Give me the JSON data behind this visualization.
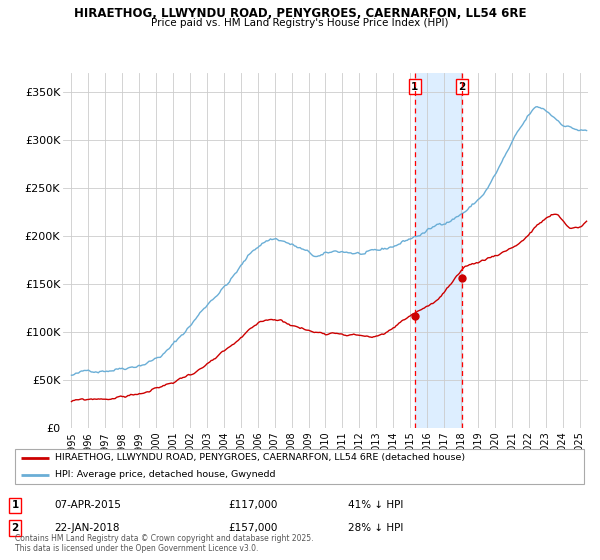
{
  "title1": "HIRAETHOG, LLWYNDU ROAD, PENYGROES, CAERNARFON, LL54 6RE",
  "title2": "Price paid vs. HM Land Registry's House Price Index (HPI)",
  "ylabel_ticks": [
    "£0",
    "£50K",
    "£100K",
    "£150K",
    "£200K",
    "£250K",
    "£300K",
    "£350K"
  ],
  "ytick_values": [
    0,
    50000,
    100000,
    150000,
    200000,
    250000,
    300000,
    350000
  ],
  "ylim": [
    0,
    370000
  ],
  "xlim_start": 1994.5,
  "xlim_end": 2025.5,
  "hpi_color": "#6aaed6",
  "price_color": "#cc0000",
  "dashed_line_color": "#ff0000",
  "shade_color": "#ddeeff",
  "marker1_date": 2015.27,
  "marker2_date": 2018.05,
  "marker1_price": 117000,
  "marker2_price": 157000,
  "legend_text1": "HIRAETHOG, LLWYNDU ROAD, PENYGROES, CAERNARFON, LL54 6RE (detached house)",
  "legend_text2": "HPI: Average price, detached house, Gwynedd",
  "note1_num": "1",
  "note1_date": "07-APR-2015",
  "note1_price": "£117,000",
  "note1_hpi": "41% ↓ HPI",
  "note2_num": "2",
  "note2_date": "22-JAN-2018",
  "note2_price": "£157,000",
  "note2_hpi": "28% ↓ HPI",
  "footer": "Contains HM Land Registry data © Crown copyright and database right 2025.\nThis data is licensed under the Open Government Licence v3.0.",
  "background_color": "#ffffff",
  "grid_color": "#cccccc"
}
